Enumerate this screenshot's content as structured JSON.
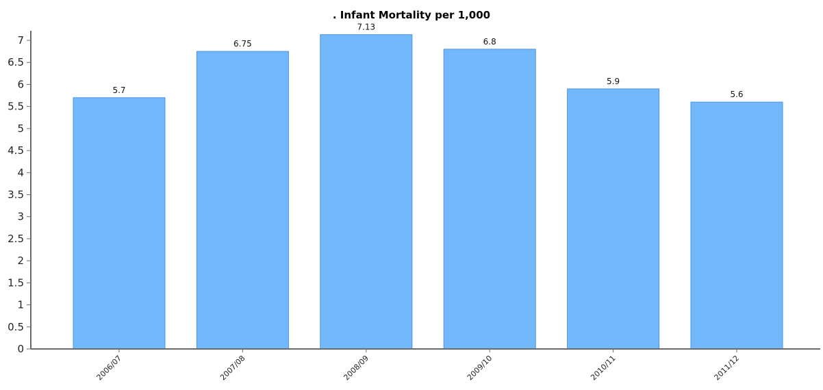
{
  "chart_data": {
    "type": "bar",
    "title": ". Infant Mortality per 1,000",
    "categories": [
      "2006/07",
      "2007/08",
      "2008/09",
      "2009/10",
      "2010/11",
      "2011/12"
    ],
    "values": [
      5.7,
      6.75,
      7.13,
      6.8,
      5.9,
      5.6
    ],
    "data_labels": [
      "5.7",
      "6.75",
      "7.13",
      "6.8",
      "5.9",
      "5.6"
    ],
    "ylim": [
      0,
      7.3
    ],
    "yticks": [
      0,
      0.5,
      1,
      1.5,
      2,
      2.5,
      3,
      3.5,
      4,
      4.5,
      5,
      5.5,
      6,
      6.5,
      7
    ],
    "ytick_labels": [
      "0",
      "0.5",
      "1",
      "1.5",
      "2",
      "2.5",
      "3",
      "3.5",
      "4",
      "4.5",
      "5",
      "5.5",
      "6",
      "6.5",
      "7"
    ],
    "grid": false,
    "legend": "none",
    "bar_color": "#74b8fc",
    "bar_edge_color": "#4a93e6",
    "axis_color": "#6a6a6a"
  }
}
